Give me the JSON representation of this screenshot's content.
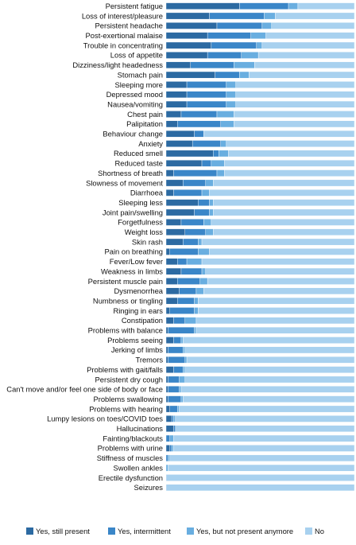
{
  "chart_data": {
    "type": "bar",
    "orientation": "horizontal",
    "stacked": true,
    "normalized_percent": true,
    "title": "",
    "xlabel": "",
    "ylabel": "",
    "xlim": [
      0,
      100
    ],
    "grid": false,
    "legend_position": "bottom",
    "categories": [
      "Persistent fatigue",
      "Loss of interest/pleasure",
      "Persistent headache",
      "Post-exertional malaise",
      "Trouble in concentrating",
      "Loss of appetite",
      "Dizziness/light headedness",
      "Stomach pain",
      "Sleeping more",
      "Depressed mood",
      "Nausea/vomiting",
      "Chest pain",
      "Palipitation",
      "Behaviour change",
      "Anxiety",
      "Reduced smell",
      "Reduced taste",
      "Shortness of breath",
      "Slowness of movement",
      "Diarrhoea",
      "Sleeping less",
      "Joint pain/swelling",
      "Forgetfulness",
      "Weight loss",
      "Skin rash",
      "Pain on breathing",
      "Fever/Low fever",
      "Weakness in limbs",
      "Persistent muscle pain",
      "Dysmenorrhea",
      "Numbness or tingling",
      "Ringing in ears",
      "Constipation",
      "Problems with balance",
      "Problems seeing",
      "Jerking of limbs",
      "Tremors",
      "Problems with gait/falls",
      "Persistent dry cough",
      "Can't move and/or feel one side of body or face",
      "Problems swallowing",
      "Problems with hearing",
      "Lumpy lesions on toes/COVID toes",
      "Hallucinations",
      "Fainting/blackouts",
      "Problems with urine",
      "Stiffness of muscles",
      "Swollen ankles",
      "Erectile dysfunction",
      "Seizures"
    ],
    "series": [
      {
        "name": "Yes, still present",
        "color": "#2c6aa2",
        "values": [
          39,
          23,
          27,
          22,
          24,
          22,
          13,
          26,
          11,
          11,
          11,
          8,
          6,
          15,
          14,
          25,
          19,
          4,
          9,
          4,
          17,
          15,
          8,
          10,
          9,
          2,
          6,
          8,
          6,
          7,
          6,
          2,
          4,
          1,
          4,
          1,
          1,
          4,
          1,
          1,
          1,
          2,
          3,
          4,
          0,
          2,
          0,
          0,
          0,
          0
        ]
      },
      {
        "name": "Yes, intermittent",
        "color": "#3a86c8",
        "values": [
          26,
          29,
          24,
          23,
          24,
          18,
          23,
          13,
          21,
          21,
          21,
          19,
          23,
          5,
          15,
          3,
          5,
          23,
          12,
          15,
          6,
          8,
          12,
          11,
          8,
          15,
          5,
          11,
          12,
          9,
          9,
          13,
          6,
          14,
          4,
          8,
          9,
          5,
          6,
          6,
          7,
          4,
          1,
          1,
          2,
          1,
          1,
          0,
          0,
          0
        ]
      },
      {
        "name": "Yes, but not present anymore",
        "color": "#69aee0",
        "values": [
          5,
          6,
          5,
          8,
          3,
          9,
          11,
          5,
          5,
          5,
          5,
          9,
          7,
          0,
          3,
          5,
          7,
          4,
          4,
          4,
          2,
          2,
          4,
          4,
          2,
          6,
          8,
          2,
          4,
          4,
          2,
          2,
          6,
          1,
          1,
          1,
          1,
          1,
          3,
          1,
          1,
          1,
          1,
          0,
          2,
          1,
          1,
          1,
          0,
          0
        ]
      },
      {
        "name": "No",
        "color": "#a8d1ef",
        "values": [
          30,
          42,
          44,
          47,
          49,
          51,
          53,
          56,
          63,
          63,
          63,
          64,
          64,
          80,
          68,
          67,
          69,
          69,
          75,
          77,
          75,
          75,
          76,
          75,
          81,
          77,
          81,
          79,
          78,
          80,
          83,
          83,
          84,
          84,
          91,
          90,
          89,
          90,
          90,
          92,
          91,
          93,
          95,
          95,
          96,
          96,
          98,
          99,
          100,
          100
        ]
      }
    ]
  }
}
